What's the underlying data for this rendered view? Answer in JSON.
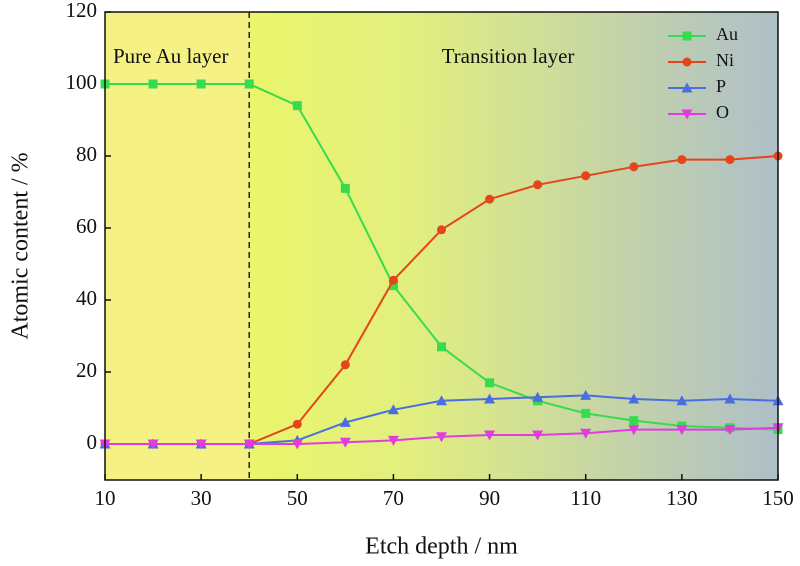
{
  "chart_data": {
    "type": "line",
    "xlabel": "Etch depth / nm",
    "ylabel": "Atomic content / %",
    "annotations": [
      "Pure Au layer",
      "Transition layer"
    ],
    "divider_x": 40,
    "x": [
      10,
      20,
      30,
      40,
      50,
      60,
      70,
      80,
      90,
      100,
      110,
      120,
      130,
      140,
      150
    ],
    "series": [
      {
        "name": "Au",
        "color": "#36dc4e",
        "marker": "square",
        "values": [
          100,
          100,
          100,
          100,
          94,
          71,
          44,
          27,
          17,
          12,
          8.5,
          6.5,
          5,
          4.5,
          4
        ]
      },
      {
        "name": "Ni",
        "color": "#e4461a",
        "marker": "circle",
        "values": [
          0,
          0,
          0,
          0,
          5.5,
          22,
          45.5,
          59.5,
          68,
          72,
          74.5,
          77,
          79,
          79,
          80
        ]
      },
      {
        "name": "P",
        "color": "#4a6ee0",
        "marker": "triangle-up",
        "values": [
          0,
          0,
          0,
          0,
          1,
          6,
          9.5,
          12,
          12.5,
          13,
          13.5,
          12.5,
          12,
          12.5,
          12
        ]
      },
      {
        "name": "O",
        "color": "#e03ce0",
        "marker": "triangle-down",
        "values": [
          0,
          0,
          0,
          0,
          0,
          0.5,
          1,
          2,
          2.5,
          2.5,
          3,
          4,
          4,
          4,
          4.5
        ]
      }
    ],
    "xlim": [
      10,
      150
    ],
    "xticks": [
      10,
      30,
      50,
      70,
      90,
      110,
      130,
      150
    ],
    "ylim": [
      -10,
      120
    ],
    "yticks": [
      0,
      20,
      40,
      60,
      80,
      100,
      120
    ],
    "legend": "upper right"
  }
}
